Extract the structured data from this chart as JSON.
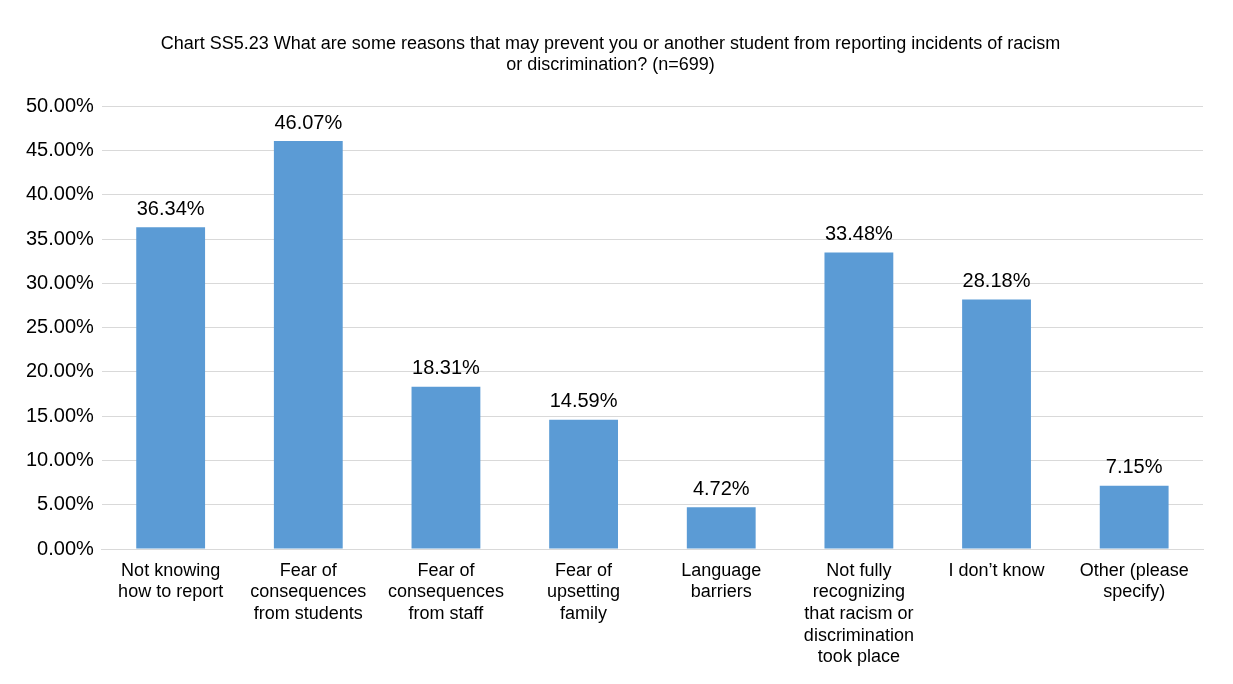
{
  "chart_data": {
    "type": "bar",
    "title": "Chart SS5.23 What are some reasons that may prevent you or another student from reporting incidents of racism or discrimination? (n=699)",
    "categories": [
      "Not knowing how to report",
      "Fear of consequences from students",
      "Fear of consequences from staff",
      "Fear of upsetting family",
      "Language barriers",
      "Not fully recognizing that racism or discrimination took place",
      "I don’t know",
      "Other (please specify)"
    ],
    "values": [
      36.34,
      46.07,
      18.31,
      14.59,
      4.72,
      33.48,
      28.18,
      7.15
    ],
    "value_labels": [
      "36.34%",
      "46.07%",
      "18.31%",
      "14.59%",
      "4.72%",
      "33.48%",
      "28.18%",
      "7.15%"
    ],
    "color": "#5b9bd5",
    "ylim": [
      0,
      50
    ],
    "yticks": [
      {
        "value": 0,
        "label": "0.00%"
      },
      {
        "value": 5,
        "label": "5.00%"
      },
      {
        "value": 10,
        "label": "10.00%"
      },
      {
        "value": 15,
        "label": "15.00%"
      },
      {
        "value": 20,
        "label": "20.00%"
      },
      {
        "value": 25,
        "label": "25.00%"
      },
      {
        "value": 30,
        "label": "30.00%"
      },
      {
        "value": 35,
        "label": "35.00%"
      },
      {
        "value": 40,
        "label": "40.00%"
      },
      {
        "value": 45,
        "label": "45.00%"
      },
      {
        "value": 50,
        "label": "50.00%"
      }
    ],
    "grid": "y",
    "legend": false
  }
}
